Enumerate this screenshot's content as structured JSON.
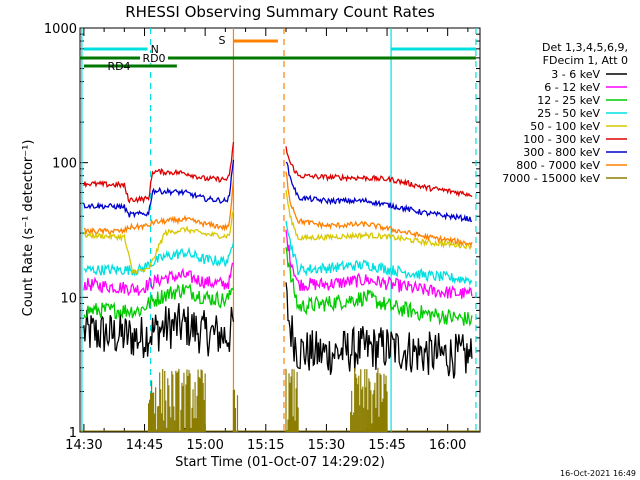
{
  "chart_data": {
    "type": "line",
    "title": "RHESSI Observing Summary Count Rates",
    "xlabel": "Start Time (01-Oct-07 14:29:02)",
    "ylabel": "Count Rate (s⁻¹ detector⁻¹)",
    "y_scale": "log",
    "ylim": [
      1,
      1000
    ],
    "y_ticks": [
      "1",
      "10",
      "100",
      "1000"
    ],
    "xlim": [
      "14:29:02",
      "16:08:00"
    ],
    "x_ticks": [
      "14:30",
      "14:45",
      "15:00",
      "15:15",
      "15:30",
      "15:45",
      "16:00"
    ],
    "timestamp": "16-Oct-2021 16:49",
    "legend": {
      "placement": "top-right",
      "header": [
        "Det 1,3,4,5,6,9,",
        "FDecim 1, Att 0"
      ],
      "entries": [
        {
          "label": "3 - 6 keV",
          "color": "#000000"
        },
        {
          "label": "6 - 12 keV",
          "color": "#ff00ff"
        },
        {
          "label": "12 - 25 keV",
          "color": "#00cc00"
        },
        {
          "label": "25 - 50 keV",
          "color": "#00e0e0"
        },
        {
          "label": "50 - 100 keV",
          "color": "#d8c800"
        },
        {
          "label": "100 - 300 keV",
          "color": "#dd0000"
        },
        {
          "label": "300 - 800 keV",
          "color": "#0000cc"
        },
        {
          "label": "800 - 7000 keV",
          "color": "#ff8000"
        },
        {
          "label": "7000 - 15000 keV",
          "color": "#8b7d00"
        }
      ]
    },
    "flags": [
      {
        "label": "N",
        "color": "#00e0e0",
        "segments": [
          [
            "14:30",
            "14:46"
          ],
          [
            "15:46",
            "16:07"
          ]
        ]
      },
      {
        "label": "RD0",
        "color": "#007700",
        "segments": [
          [
            "14:29",
            "16:07"
          ]
        ]
      },
      {
        "label": "RD4",
        "color": "#007700",
        "segments": [
          [
            "14:30",
            "14:53"
          ]
        ]
      },
      {
        "label": "S",
        "color": "#ff8000",
        "segments": [
          [
            "15:07",
            "15:18"
          ]
        ]
      }
    ],
    "event_lines": [
      {
        "time": "14:29:30",
        "color": "#00e0e0",
        "style": "solid"
      },
      {
        "time": "14:46:30",
        "color": "#00e0e0",
        "style": "dashed"
      },
      {
        "time": "15:07:00",
        "color": "#ff8000",
        "style": "solid"
      },
      {
        "time": "15:19:30",
        "color": "#ff8000",
        "style": "dashed"
      },
      {
        "time": "15:46:00",
        "color": "#00e0e0",
        "style": "solid"
      },
      {
        "time": "16:07:00",
        "color": "#00e0e0",
        "style": "dashed"
      }
    ],
    "series": [
      {
        "name": "3 - 6 keV",
        "color": "#000000",
        "noise": 0.17,
        "x": [
          "14:30",
          "14:40",
          "14:44",
          "14:46",
          "14:50",
          "14:55",
          "15:00",
          "15:05",
          "15:06",
          "15:07",
          "15:20",
          "15:21",
          "15:23",
          "15:30",
          "15:40",
          "15:46",
          "15:55",
          "16:06"
        ],
        "y": [
          5.5,
          5.2,
          5.0,
          5.4,
          6.0,
          6.2,
          5.4,
          5.2,
          5.3,
          6.5,
          10.0,
          6.0,
          4.0,
          3.8,
          4.2,
          4.2,
          3.8,
          3.6
        ]
      },
      {
        "name": "6 - 12 keV",
        "color": "#ff00ff",
        "noise": 0.05,
        "x": [
          "14:30",
          "14:40",
          "14:44",
          "14:46",
          "14:50",
          "14:55",
          "15:00",
          "15:05",
          "15:06",
          "15:07",
          "15:20",
          "15:21",
          "15:23",
          "15:30",
          "15:40",
          "15:46",
          "15:55",
          "16:06"
        ],
        "y": [
          12.5,
          11.8,
          11.5,
          12.5,
          14.0,
          14.5,
          13.0,
          12.5,
          13.0,
          18.0,
          30.0,
          20.0,
          12.5,
          12.5,
          13.5,
          12.5,
          11.2,
          10.5
        ]
      },
      {
        "name": "12 - 25 keV",
        "color": "#00cc00",
        "noise": 0.06,
        "x": [
          "14:30",
          "14:40",
          "14:44",
          "14:46",
          "14:50",
          "14:55",
          "15:00",
          "15:05",
          "15:06",
          "15:07",
          "15:20",
          "15:21",
          "15:23",
          "15:30",
          "15:40",
          "15:46",
          "15:55",
          "16:06"
        ],
        "y": [
          8.0,
          8.0,
          8.0,
          9.0,
          10.5,
          11.5,
          10.0,
          9.5,
          10.0,
          13.0,
          24.0,
          15.0,
          8.5,
          9.0,
          10.0,
          8.5,
          7.5,
          6.8
        ]
      },
      {
        "name": "25 - 50 keV",
        "color": "#00e0e0",
        "noise": 0.04,
        "x": [
          "14:30",
          "14:40",
          "14:44",
          "14:46",
          "14:50",
          "14:55",
          "15:00",
          "15:05",
          "15:06",
          "15:07",
          "15:20",
          "15:21",
          "15:23",
          "15:30",
          "15:40",
          "15:46",
          "15:55",
          "16:06"
        ],
        "y": [
          16.0,
          16.0,
          16.0,
          17.5,
          20.0,
          21.5,
          19.0,
          18.5,
          19.0,
          28.0,
          40.0,
          26.0,
          16.0,
          16.5,
          17.5,
          16.0,
          14.5,
          13.5
        ]
      },
      {
        "name": "50 - 100 keV",
        "color": "#d8c800",
        "noise": 0.02,
        "x": [
          "14:30",
          "14:40",
          "14:42",
          "14:46",
          "14:50",
          "14:55",
          "15:00",
          "15:05",
          "15:06",
          "15:07",
          "15:20",
          "15:21",
          "15:23",
          "15:30",
          "15:40",
          "15:46",
          "15:55",
          "16:06"
        ],
        "y": [
          29.0,
          28.0,
          15.5,
          16.0,
          30.0,
          32.0,
          29.5,
          28.5,
          29.0,
          45.0,
          62.0,
          40.0,
          27.5,
          28.0,
          29.0,
          28.0,
          25.5,
          24.0
        ]
      },
      {
        "name": "100 - 300 keV",
        "color": "#dd0000",
        "noise": 0.02,
        "x": [
          "14:30",
          "14:40",
          "14:41",
          "14:46",
          "14:47",
          "14:55",
          "15:00",
          "15:05",
          "15:06",
          "15:07",
          "15:20",
          "15:21",
          "15:23",
          "15:30",
          "15:40",
          "15:46",
          "15:55",
          "16:06"
        ],
        "y": [
          70.0,
          68.0,
          53.0,
          54.0,
          86.0,
          84.0,
          76.0,
          75.0,
          78.0,
          140.0,
          128.0,
          100.0,
          80.0,
          78.0,
          77.0,
          75.0,
          65.0,
          58.0
        ]
      },
      {
        "name": "300 - 800 keV",
        "color": "#0000cc",
        "noise": 0.02,
        "x": [
          "14:30",
          "14:40",
          "14:41",
          "14:46",
          "14:47",
          "14:55",
          "15:00",
          "15:05",
          "15:06",
          "15:07",
          "15:20",
          "15:21",
          "15:23",
          "15:30",
          "15:40",
          "15:46",
          "15:55",
          "16:06"
        ],
        "y": [
          48.0,
          47.0,
          41.0,
          42.0,
          62.0,
          60.0,
          54.0,
          52.0,
          55.0,
          110.0,
          105.0,
          78.0,
          55.0,
          52.0,
          52.0,
          48.0,
          42.0,
          38.0
        ]
      },
      {
        "name": "800 - 7000 keV",
        "color": "#ff8000",
        "noise": 0.02,
        "x": [
          "14:30",
          "14:40",
          "14:41",
          "14:46",
          "14:47",
          "14:55",
          "15:00",
          "15:05",
          "15:06",
          "15:07",
          "15:20",
          "15:21",
          "15:23",
          "15:30",
          "15:40",
          "15:46",
          "15:55",
          "16:06"
        ],
        "y": [
          31.0,
          31.0,
          33.0,
          34.0,
          36.0,
          38.0,
          35.0,
          33.0,
          35.0,
          72.0,
          85.0,
          52.0,
          37.0,
          34.0,
          35.0,
          32.0,
          28.0,
          25.0
        ]
      }
    ],
    "spikes": {
      "name": "7000 - 15000 keV",
      "color": "#8b7d00",
      "windows": [
        [
          "14:46",
          "15:00"
        ],
        [
          "15:07",
          "15:08"
        ],
        [
          "15:20",
          "15:23"
        ],
        [
          "15:36",
          "15:45"
        ]
      ],
      "y_range": [
        1,
        3
      ]
    }
  }
}
